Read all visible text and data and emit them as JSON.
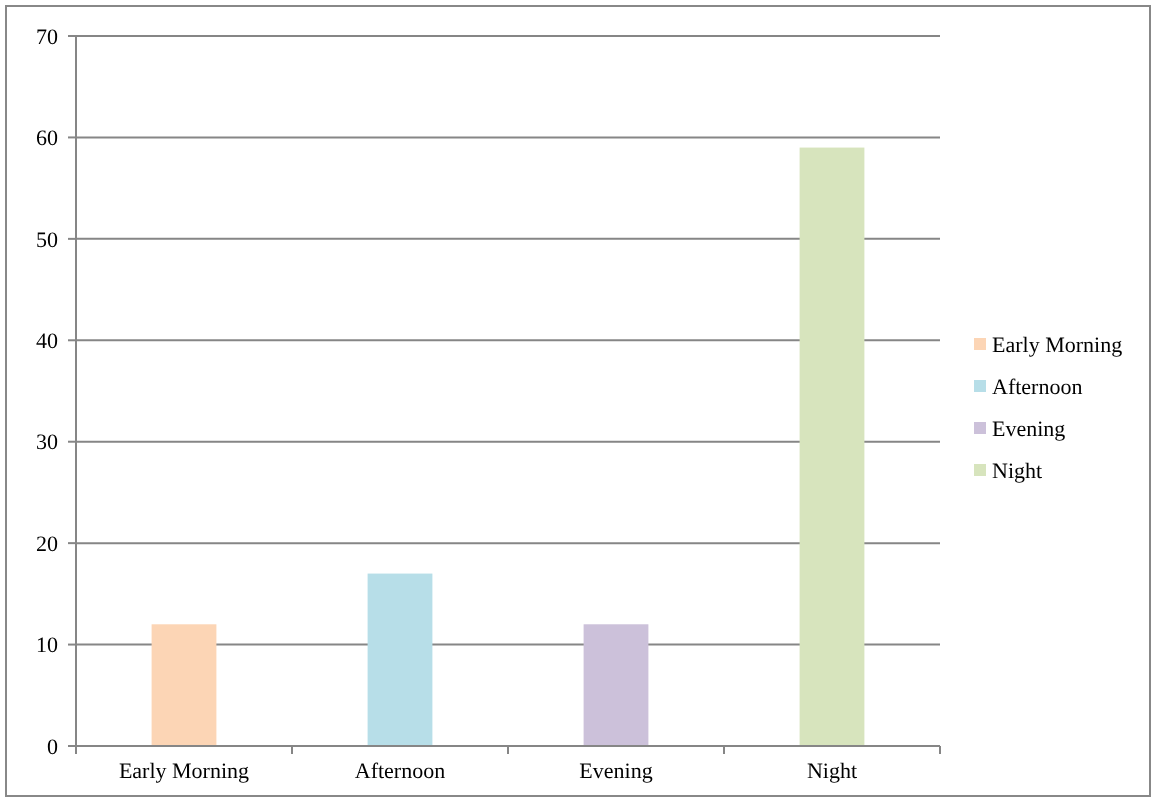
{
  "chart_data": {
    "type": "bar",
    "categories": [
      "Early Morning",
      "Afternoon",
      "Evening",
      "Night"
    ],
    "series": [
      {
        "name": "Early Morning",
        "color": "#fcd5b5",
        "values": [
          12,
          null,
          null,
          null
        ]
      },
      {
        "name": "Afternoon",
        "color": "#b7dee8",
        "values": [
          null,
          17,
          null,
          null
        ]
      },
      {
        "name": "Evening",
        "color": "#ccc1da",
        "values": [
          null,
          null,
          12,
          null
        ]
      },
      {
        "name": "Night",
        "color": "#d7e4bd",
        "values": [
          null,
          null,
          null,
          59
        ]
      }
    ],
    "ylim": [
      0,
      70
    ],
    "yticks": [
      0,
      10,
      20,
      30,
      40,
      50,
      60,
      70
    ],
    "grid": "y",
    "legend": "right"
  }
}
